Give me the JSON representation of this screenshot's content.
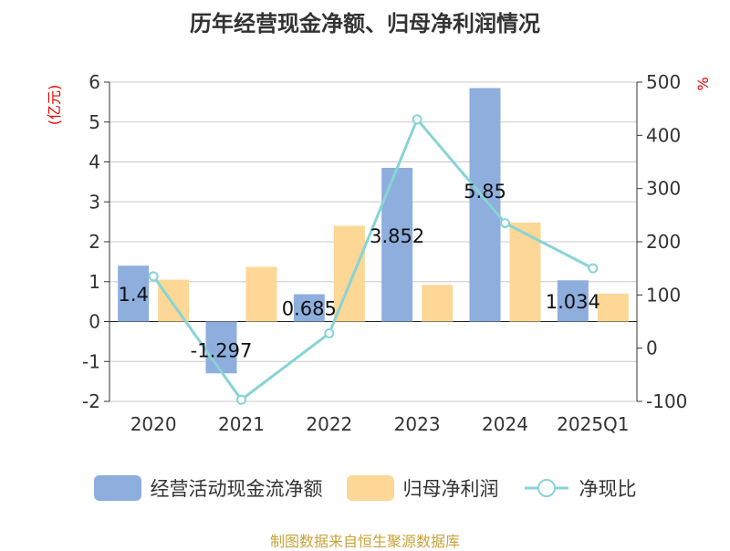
{
  "chart_data": {
    "type": "bar",
    "title": "历年经营现金净额、归母净利润情况",
    "categories": [
      "2020",
      "2021",
      "2022",
      "2023",
      "2024",
      "2025Q1"
    ],
    "y_left": {
      "unit_label": "(亿元)",
      "ylim": [
        -2,
        6
      ],
      "ticks": [
        "6",
        "5",
        "4",
        "3",
        "2",
        "1",
        "0",
        "-1",
        "-2"
      ]
    },
    "y_right": {
      "unit_label": "%",
      "ylim": [
        -100,
        500
      ],
      "ticks": [
        "500",
        "400",
        "300",
        "200",
        "100",
        "0",
        "-100"
      ]
    },
    "series": [
      {
        "name": "经营活动现金流净额",
        "type": "bar",
        "axis": "left",
        "values": [
          1.4,
          -1.297,
          0.685,
          3.852,
          5.85,
          1.034
        ],
        "labels": [
          "1.4",
          "-1.297",
          "0.685",
          "3.852",
          "5.85",
          "1.034"
        ]
      },
      {
        "name": "归母净利润",
        "type": "bar",
        "axis": "left",
        "values": [
          1.05,
          1.37,
          2.4,
          0.92,
          2.48,
          0.7
        ]
      },
      {
        "name": "净现比",
        "type": "line",
        "axis": "right",
        "values": [
          135,
          -97,
          28,
          430,
          235,
          150
        ]
      }
    ],
    "grid": true,
    "legend_position": "bottom",
    "source_note": "制图数据来自恒生聚源数据库"
  },
  "colors": {
    "cash_flow": "#8eaedd",
    "net_profit": "#fdd795",
    "ratio_line": "#88d3d6",
    "title_text": "#333333",
    "unit_red": "#e60000",
    "source": "#c9a33a"
  }
}
